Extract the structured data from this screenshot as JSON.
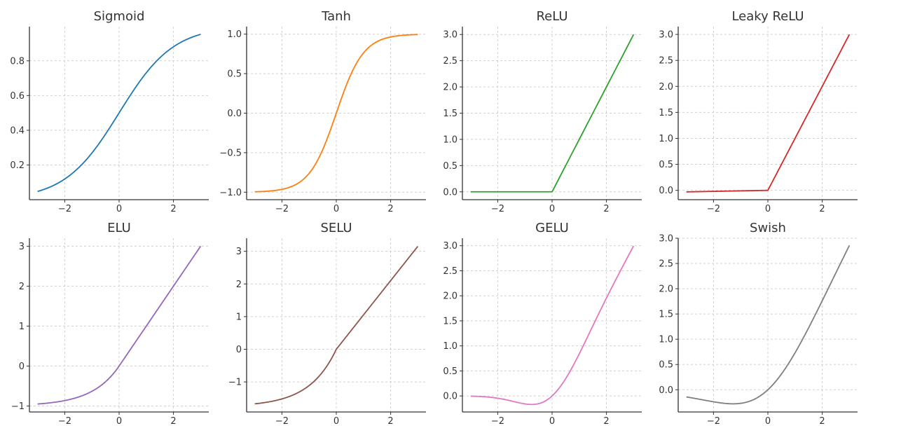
{
  "figure": {
    "layout": "2x4 grid of activation function plots",
    "grid": true
  },
  "chart_data": [
    {
      "type": "line",
      "title": "Sigmoid",
      "color": "#1f77b4",
      "func": "sigmoid",
      "xlim": [
        -3.3,
        3.3
      ],
      "ylim": [
        0.0,
        0.997
      ],
      "xticks": [
        -2,
        0,
        2
      ],
      "xtick_labels": [
        "−2",
        "0",
        "2"
      ],
      "yticks": [
        0.2,
        0.4,
        0.6,
        0.8
      ],
      "ytick_labels": [
        "0.2",
        "0.4",
        "0.6",
        "0.8"
      ],
      "x": [
        -3,
        -2,
        -1,
        0,
        1,
        2,
        3
      ],
      "y": [
        0.047,
        0.119,
        0.269,
        0.5,
        0.731,
        0.881,
        0.953
      ]
    },
    {
      "type": "line",
      "title": "Tanh",
      "color": "#ff7f0e",
      "func": "tanh",
      "xlim": [
        -3.3,
        3.3
      ],
      "ylim": [
        -1.095,
        1.095
      ],
      "xticks": [
        -2,
        0,
        2
      ],
      "xtick_labels": [
        "−2",
        "0",
        "2"
      ],
      "yticks": [
        -1.0,
        -0.5,
        0.0,
        0.5,
        1.0
      ],
      "ytick_labels": [
        "−1.0",
        "−0.5",
        "0.0",
        "0.5",
        "1.0"
      ],
      "x": [
        -3,
        -2,
        -1,
        0,
        1,
        2,
        3
      ],
      "y": [
        -0.995,
        -0.964,
        -0.762,
        0.0,
        0.762,
        0.964,
        0.995
      ]
    },
    {
      "type": "line",
      "title": "ReLU",
      "color": "#2ca02c",
      "func": "relu",
      "xlim": [
        -3.3,
        3.3
      ],
      "ylim": [
        -0.15,
        3.15
      ],
      "xticks": [
        -2,
        0,
        2
      ],
      "xtick_labels": [
        "−2",
        "0",
        "2"
      ],
      "yticks": [
        0.0,
        0.5,
        1.0,
        1.5,
        2.0,
        2.5,
        3.0
      ],
      "ytick_labels": [
        "0.0",
        "0.5",
        "1.0",
        "1.5",
        "2.0",
        "2.5",
        "3.0"
      ],
      "x": [
        -3,
        -2,
        -1,
        0,
        1,
        2,
        3
      ],
      "y": [
        0,
        0,
        0,
        0,
        1,
        2,
        3
      ]
    },
    {
      "type": "line",
      "title": "Leaky ReLU",
      "color": "#d62728",
      "func": "leaky_relu",
      "alpha": 0.01,
      "xlim": [
        -3.3,
        3.3
      ],
      "ylim": [
        -0.18,
        3.15
      ],
      "xticks": [
        -2,
        0,
        2
      ],
      "xtick_labels": [
        "−2",
        "0",
        "2"
      ],
      "yticks": [
        0.0,
        0.5,
        1.0,
        1.5,
        2.0,
        2.5,
        3.0
      ],
      "ytick_labels": [
        "0.0",
        "0.5",
        "1.0",
        "1.5",
        "2.0",
        "2.5",
        "3.0"
      ],
      "x": [
        -3,
        -2,
        -1,
        0,
        1,
        2,
        3
      ],
      "y": [
        -0.03,
        -0.02,
        -0.01,
        0,
        1,
        2,
        3
      ]
    },
    {
      "type": "line",
      "title": "ELU",
      "color": "#9467bd",
      "func": "elu",
      "alpha": 1.0,
      "xlim": [
        -3.3,
        3.3
      ],
      "ylim": [
        -1.15,
        3.2
      ],
      "xticks": [
        -2,
        0,
        2
      ],
      "xtick_labels": [
        "−2",
        "0",
        "2"
      ],
      "yticks": [
        -1,
        0,
        1,
        2,
        3
      ],
      "ytick_labels": [
        "−1",
        "0",
        "1",
        "2",
        "3"
      ],
      "x": [
        -3,
        -2,
        -1,
        0,
        1,
        2,
        3
      ],
      "y": [
        -0.95,
        -0.865,
        -0.632,
        0,
        1,
        2,
        3
      ]
    },
    {
      "type": "line",
      "title": "SELU",
      "color": "#8c564b",
      "func": "selu",
      "xlim": [
        -3.3,
        3.3
      ],
      "ylim": [
        -1.92,
        3.4
      ],
      "xticks": [
        -2,
        0,
        2
      ],
      "xtick_labels": [
        "−2",
        "0",
        "2"
      ],
      "yticks": [
        -1,
        0,
        1,
        2,
        3
      ],
      "ytick_labels": [
        "−1",
        "0",
        "1",
        "2",
        "3"
      ],
      "x": [
        -3,
        -2,
        -1,
        0,
        1,
        2,
        3
      ],
      "y": [
        -1.67,
        -1.52,
        -1.11,
        0,
        1.05,
        2.1,
        3.15
      ]
    },
    {
      "type": "line",
      "title": "GELU",
      "color": "#e377c2",
      "func": "gelu",
      "xlim": [
        -3.3,
        3.3
      ],
      "ylim": [
        -0.32,
        3.15
      ],
      "xticks": [
        -2,
        0,
        2
      ],
      "xtick_labels": [
        "−2",
        "0",
        "2"
      ],
      "yticks": [
        0.0,
        0.5,
        1.0,
        1.5,
        2.0,
        2.5,
        3.0
      ],
      "ytick_labels": [
        "0.0",
        "0.5",
        "1.0",
        "1.5",
        "2.0",
        "2.5",
        "3.0"
      ],
      "x": [
        -3,
        -2,
        -1,
        0,
        1,
        2,
        3
      ],
      "y": [
        -0.004,
        -0.045,
        -0.159,
        0,
        0.841,
        1.955,
        2.996
      ]
    },
    {
      "type": "line",
      "title": "Swish",
      "color": "#7f7f7f",
      "func": "swish",
      "xlim": [
        -3.3,
        3.3
      ],
      "ylim": [
        -0.44,
        3.0
      ],
      "xticks": [
        -2,
        0,
        2
      ],
      "xtick_labels": [
        "−2",
        "0",
        "2"
      ],
      "yticks": [
        0.0,
        0.5,
        1.0,
        1.5,
        2.0,
        2.5,
        3.0
      ],
      "ytick_labels": [
        "0.0",
        "0.5",
        "1.0",
        "1.5",
        "2.0",
        "2.5",
        "3.0"
      ],
      "x": [
        -3,
        -2,
        -1,
        0,
        1,
        2,
        3
      ],
      "y": [
        -0.142,
        -0.238,
        -0.269,
        0,
        0.731,
        1.762,
        2.858
      ]
    }
  ]
}
